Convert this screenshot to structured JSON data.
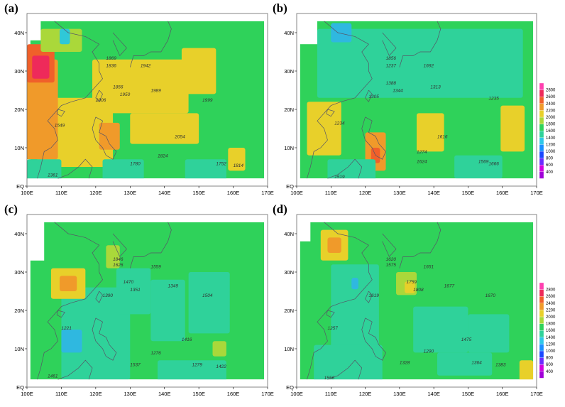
{
  "panels": [
    {
      "label": "(a)",
      "mask": "west",
      "base": "#2fd25a",
      "stations": [
        {
          "v": "1869",
          "lon": 123,
          "lat": 33
        },
        {
          "v": "1836",
          "lon": 123,
          "lat": 31
        },
        {
          "v": "1942",
          "lon": 133,
          "lat": 31
        },
        {
          "v": "1856",
          "lon": 125,
          "lat": 25.5
        },
        {
          "v": "1950",
          "lon": 127,
          "lat": 23.5
        },
        {
          "v": "1989",
          "lon": 136,
          "lat": 24.5
        },
        {
          "v": "2006",
          "lon": 120,
          "lat": 22
        },
        {
          "v": "1999",
          "lon": 151,
          "lat": 22
        },
        {
          "v": "1549",
          "lon": 108,
          "lat": 15.5
        },
        {
          "v": "2054",
          "lon": 143,
          "lat": 12.5
        },
        {
          "v": "1824",
          "lon": 138,
          "lat": 7.5
        },
        {
          "v": "1780",
          "lon": 130,
          "lat": 5.5
        },
        {
          "v": "1752",
          "lon": 155,
          "lat": 5.5
        },
        {
          "v": "1814",
          "lon": 160,
          "lat": 5
        },
        {
          "v": "1361",
          "lon": 106,
          "lat": 2.5
        }
      ],
      "blobs": [
        {
          "lon": 114,
          "lat": 14,
          "rx": 11,
          "ry": 9,
          "c": "#e8d02a"
        },
        {
          "lon": 104,
          "lat": 20,
          "rx": 5,
          "ry": 13,
          "c": "#f09a2a"
        },
        {
          "lon": 104,
          "lat": 32,
          "rx": 4,
          "ry": 5,
          "c": "#f0602a"
        },
        {
          "lon": 104,
          "lat": 31,
          "rx": 2.5,
          "ry": 3,
          "c": "#ee2a5a"
        },
        {
          "lon": 124,
          "lat": 13,
          "rx": 3,
          "ry": 3.5,
          "c": "#f09a2a"
        },
        {
          "lon": 133,
          "lat": 26,
          "rx": 14,
          "ry": 7,
          "c": "#e8d02a"
        },
        {
          "lon": 150,
          "lat": 30,
          "rx": 5,
          "ry": 6,
          "c": "#e8d02a"
        },
        {
          "lon": 140,
          "lat": 15,
          "rx": 10,
          "ry": 4,
          "c": "#e8d02a"
        },
        {
          "lon": 161,
          "lat": 7,
          "rx": 2.5,
          "ry": 3,
          "c": "#e8d02a"
        },
        {
          "lon": 110,
          "lat": 38,
          "rx": 6,
          "ry": 3,
          "c": "#aad83a"
        },
        {
          "lon": 111,
          "lat": 39,
          "rx": 1.5,
          "ry": 2,
          "c": "#2fc8d8"
        },
        {
          "lon": 105,
          "lat": 4,
          "rx": 5,
          "ry": 3,
          "c": "#2fd29a"
        },
        {
          "lon": 128,
          "lat": 4,
          "rx": 6,
          "ry": 3,
          "c": "#2fd29a"
        },
        {
          "lon": 152,
          "lat": 4,
          "rx": 6,
          "ry": 3,
          "c": "#2fd29a"
        }
      ]
    },
    {
      "label": "(b)",
      "mask": "northwest",
      "base": "#2fd25a",
      "stations": [
        {
          "v": "1856",
          "lon": 126,
          "lat": 33
        },
        {
          "v": "1237",
          "lon": 126,
          "lat": 31
        },
        {
          "v": "1692",
          "lon": 137,
          "lat": 31
        },
        {
          "v": "1388",
          "lon": 126,
          "lat": 26.5
        },
        {
          "v": "1344",
          "lon": 128,
          "lat": 24.5
        },
        {
          "v": "1313",
          "lon": 139,
          "lat": 25.5
        },
        {
          "v": "1305",
          "lon": 121,
          "lat": 23
        },
        {
          "v": "1235",
          "lon": 156,
          "lat": 22.5
        },
        {
          "v": "1234",
          "lon": 111,
          "lat": 16
        },
        {
          "v": "1616",
          "lon": 141,
          "lat": 12.5
        },
        {
          "v": "1274",
          "lon": 135,
          "lat": 8.5
        },
        {
          "v": "1624",
          "lon": 135,
          "lat": 6
        },
        {
          "v": "1569",
          "lon": 153,
          "lat": 6
        },
        {
          "v": "1666",
          "lon": 156,
          "lat": 5.5
        },
        {
          "v": "1519",
          "lon": 111,
          "lat": 2
        }
      ],
      "blobs": [
        {
          "lon": 136,
          "lat": 32,
          "rx": 30,
          "ry": 9,
          "c": "#2fd29a"
        },
        {
          "lon": 113,
          "lat": 40,
          "rx": 3,
          "ry": 2.5,
          "c": "#2fb8e0"
        },
        {
          "lon": 108,
          "lat": 15,
          "rx": 5,
          "ry": 7,
          "c": "#e8d02a"
        },
        {
          "lon": 123,
          "lat": 9,
          "rx": 3,
          "ry": 5,
          "c": "#f09a2a"
        },
        {
          "lon": 123,
          "lat": 8,
          "rx": 1.3,
          "ry": 2,
          "c": "#f0602a"
        },
        {
          "lon": 139,
          "lat": 14,
          "rx": 4,
          "ry": 5,
          "c": "#e8d02a"
        },
        {
          "lon": 163,
          "lat": 15,
          "rx": 3.5,
          "ry": 6,
          "c": "#e8d02a"
        },
        {
          "lon": 116,
          "lat": 4,
          "rx": 7,
          "ry": 3,
          "c": "#2fd29a"
        },
        {
          "lon": 153,
          "lat": 5,
          "rx": 7,
          "ry": 3,
          "c": "#2fd29a"
        }
      ]
    },
    {
      "label": "(c)",
      "mask": "west-small",
      "base": "#2fd25a",
      "stations": [
        {
          "v": "1846",
          "lon": 125,
          "lat": 33
        },
        {
          "v": "1626",
          "lon": 125,
          "lat": 31.5
        },
        {
          "v": "1559",
          "lon": 136,
          "lat": 31
        },
        {
          "v": "1470",
          "lon": 128,
          "lat": 27
        },
        {
          "v": "1351",
          "lon": 130,
          "lat": 25
        },
        {
          "v": "1349",
          "lon": 141,
          "lat": 26
        },
        {
          "v": "1390",
          "lon": 122,
          "lat": 23.5
        },
        {
          "v": "1504",
          "lon": 151,
          "lat": 23.5
        },
        {
          "v": "1221",
          "lon": 110,
          "lat": 15
        },
        {
          "v": "1416",
          "lon": 145,
          "lat": 12
        },
        {
          "v": "1276",
          "lon": 136,
          "lat": 8.5
        },
        {
          "v": "1537",
          "lon": 130,
          "lat": 5.5
        },
        {
          "v": "1279",
          "lon": 148,
          "lat": 5.5
        },
        {
          "v": "1422",
          "lon": 155,
          "lat": 5
        },
        {
          "v": "1461",
          "lon": 106,
          "lat": 2.5
        }
      ],
      "blobs": [
        {
          "lon": 120,
          "lat": 14,
          "rx": 10,
          "ry": 12,
          "c": "#2fd29a"
        },
        {
          "lon": 113,
          "lat": 12,
          "rx": 3,
          "ry": 3,
          "c": "#2fb8e0"
        },
        {
          "lon": 112,
          "lat": 27,
          "rx": 5,
          "ry": 4,
          "c": "#e8d02a"
        },
        {
          "lon": 112,
          "lat": 27,
          "rx": 2.5,
          "ry": 2,
          "c": "#f09a2a"
        },
        {
          "lon": 125,
          "lat": 34,
          "rx": 2,
          "ry": 3,
          "c": "#aad83a"
        },
        {
          "lon": 131,
          "lat": 25,
          "rx": 5,
          "ry": 6,
          "c": "#2fd29a"
        },
        {
          "lon": 141,
          "lat": 20,
          "rx": 5,
          "ry": 8,
          "c": "#2fd29a"
        },
        {
          "lon": 153,
          "lat": 22,
          "rx": 6,
          "ry": 8,
          "c": "#2fd29a"
        },
        {
          "lon": 156,
          "lat": 10,
          "rx": 2,
          "ry": 2,
          "c": "#aad83a"
        },
        {
          "lon": 148,
          "lat": 4,
          "rx": 10,
          "ry": 3,
          "c": "#2fd29a"
        }
      ]
    },
    {
      "label": "(d)",
      "mask": "west",
      "base": "#2fd25a",
      "stations": [
        {
          "v": "1620",
          "lon": 126,
          "lat": 33
        },
        {
          "v": "1575",
          "lon": 126,
          "lat": 31.5
        },
        {
          "v": "1651",
          "lon": 137,
          "lat": 31
        },
        {
          "v": "1759",
          "lon": 132,
          "lat": 27
        },
        {
          "v": "1808",
          "lon": 134,
          "lat": 25
        },
        {
          "v": "1677",
          "lon": 143,
          "lat": 26
        },
        {
          "v": "1619",
          "lon": 121,
          "lat": 23.5
        },
        {
          "v": "1670",
          "lon": 155,
          "lat": 23.5
        },
        {
          "v": "1257",
          "lon": 109,
          "lat": 15
        },
        {
          "v": "1475",
          "lon": 148,
          "lat": 12
        },
        {
          "v": "1290",
          "lon": 137,
          "lat": 9
        },
        {
          "v": "1328",
          "lon": 130,
          "lat": 6
        },
        {
          "v": "1364",
          "lon": 151,
          "lat": 6
        },
        {
          "v": "1383",
          "lon": 158,
          "lat": 5.5
        },
        {
          "v": "1556",
          "lon": 108,
          "lat": 2
        }
      ],
      "blobs": [
        {
          "lon": 117,
          "lat": 20,
          "rx": 7,
          "ry": 12,
          "c": "#2fd29a"
        },
        {
          "lon": 117,
          "lat": 27,
          "rx": 1,
          "ry": 1.5,
          "c": "#2fb8e0"
        },
        {
          "lon": 111,
          "lat": 37,
          "rx": 4,
          "ry": 4,
          "c": "#e8d02a"
        },
        {
          "lon": 111,
          "lat": 37,
          "rx": 2,
          "ry": 2,
          "c": "#f09a2a"
        },
        {
          "lon": 132,
          "lat": 27,
          "rx": 3,
          "ry": 3,
          "c": "#aad83a"
        },
        {
          "lon": 133,
          "lat": 26,
          "rx": 1.5,
          "ry": 1.5,
          "c": "#e8d02a"
        },
        {
          "lon": 142,
          "lat": 15,
          "rx": 8,
          "ry": 6,
          "c": "#2fd29a"
        },
        {
          "lon": 156,
          "lat": 14,
          "rx": 6,
          "ry": 5,
          "c": "#2fd29a"
        },
        {
          "lon": 115,
          "lat": 6,
          "rx": 10,
          "ry": 5,
          "c": "#2fd29a"
        },
        {
          "lon": 167,
          "lat": 4,
          "rx": 2,
          "ry": 3,
          "c": "#e8d02a"
        },
        {
          "lon": 149,
          "lat": 6,
          "rx": 8,
          "ry": 3,
          "c": "#2fd29a"
        }
      ]
    }
  ],
  "x_ticks": [
    "100E",
    "110E",
    "120E",
    "130E",
    "140E",
    "150E",
    "160E",
    "170E"
  ],
  "y_ticks": [
    "EQ",
    "10N",
    "20N",
    "30N",
    "40N"
  ],
  "lon_range": [
    100,
    170
  ],
  "lat_range": [
    0,
    45
  ],
  "colorbar": {
    "levels": [
      "400",
      "600",
      "800",
      "1000",
      "1200",
      "1400",
      "1600",
      "1800",
      "2000",
      "2200",
      "2400",
      "2600",
      "2800"
    ],
    "colors": [
      "#a000d8",
      "#d000e0",
      "#6a2cff",
      "#1a48ff",
      "#1a90ff",
      "#2fc8e8",
      "#2fd29a",
      "#2fd25a",
      "#aad83a",
      "#e8d02a",
      "#f09a2a",
      "#f0602a",
      "#ee2a5a",
      "#ff40b0"
    ]
  }
}
